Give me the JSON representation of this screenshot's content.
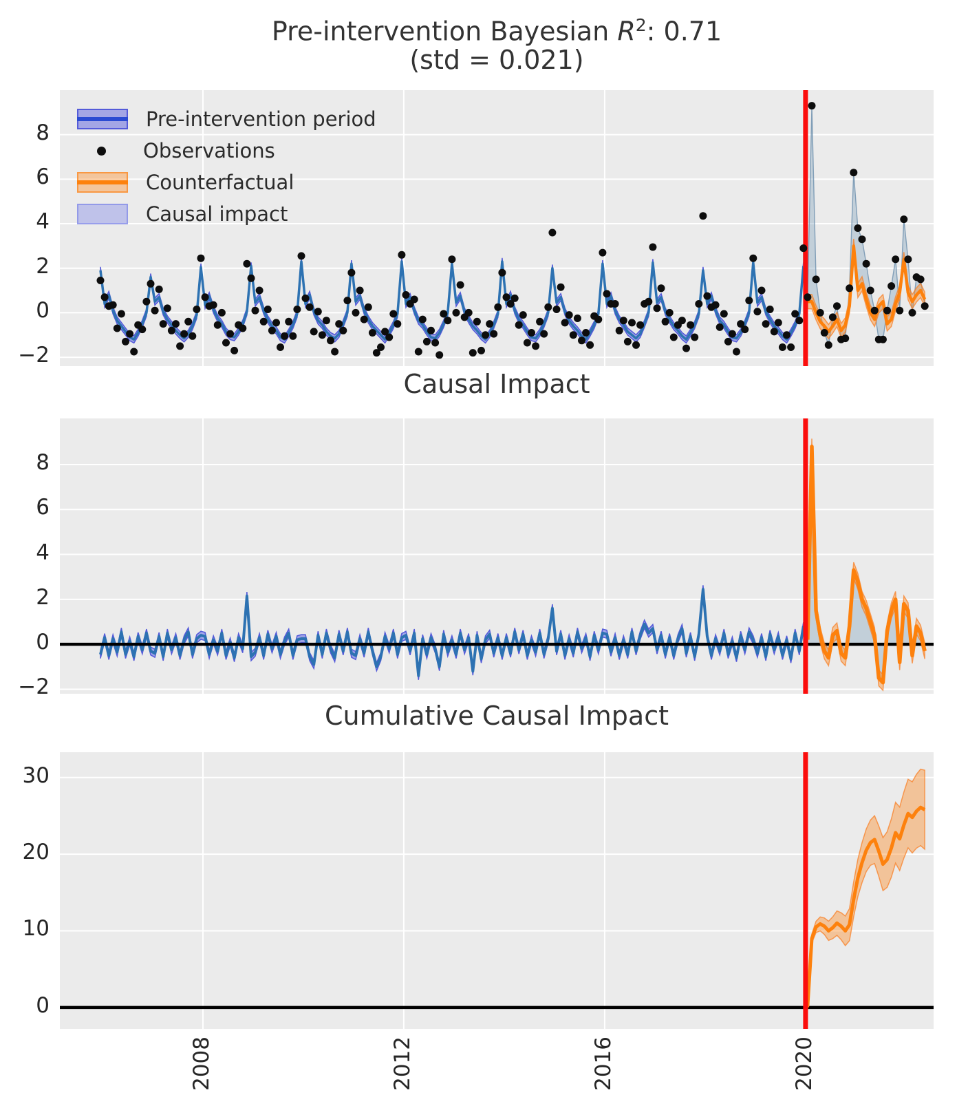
{
  "titles": {
    "main_prefix": "Pre-intervention Bayesian ",
    "main_r": "R",
    "main_sup": "2",
    "main_suffix": ": 0.71",
    "subtitle": "(std = 0.021)",
    "panel2": "Causal Impact",
    "panel3": "Cumulative Causal Impact"
  },
  "legend": {
    "items": [
      {
        "label": "Pre-intervention period",
        "swatch": "blue-band-line"
      },
      {
        "label": "Observations",
        "swatch": "black-dot"
      },
      {
        "label": "Counterfactual",
        "swatch": "orange-band-line"
      },
      {
        "label": "Causal impact",
        "swatch": "lightblue-band"
      }
    ]
  },
  "colors": {
    "pre_line": "#2d72b2",
    "pre_band": "rgba(92,98,224,0.55)",
    "pre_band_edge": "rgba(70,78,215,0.9)",
    "counterfactual_line": "#fd810d",
    "counterfactual_band": "rgba(253,140,40,0.42)",
    "counterfactual_band_edge": "rgba(250,122,28,0.7)",
    "impact_fill": "rgba(114,152,183,0.34)",
    "impact_edge": "rgba(108,142,172,0.8)",
    "observation_dot": "#0d0d0d",
    "intervention_line": "#fb0d0c",
    "zero_line": "#000000",
    "panel_bg": "#ebebeb",
    "grid": "#ffffff",
    "legend_line_blue": "#2a4bd2"
  },
  "chart_data": {
    "type": "line",
    "x_range": [
      2005.15,
      2022.55
    ],
    "x_tick_values": [
      2008,
      2012,
      2016,
      2020
    ],
    "x_tick_labels": [
      "2008",
      "2012",
      "2016",
      "2020"
    ],
    "intervention_x": 2020.0,
    "panels": [
      {
        "name": "fit",
        "y_tick_values": [
          -2,
          0,
          2,
          4,
          6,
          8
        ],
        "y_tick_labels": [
          "−2",
          "0",
          "2",
          "4",
          "6",
          "8"
        ],
        "y_range": [
          -2.4,
          10.0
        ]
      },
      {
        "name": "pointwise",
        "y_tick_values": [
          -2,
          0,
          2,
          4,
          6,
          8
        ],
        "y_tick_labels": [
          "−2",
          "0",
          "2",
          "4",
          "6",
          "8"
        ],
        "y_range": [
          -2.2,
          10.05
        ]
      },
      {
        "name": "cumulative",
        "y_tick_values": [
          0,
          10,
          20,
          30
        ],
        "y_tick_labels": [
          "0",
          "10",
          "20",
          "30"
        ],
        "y_range": [
          -2.8,
          33.3
        ]
      }
    ],
    "series": {
      "start_year": 2005,
      "start_month": 12,
      "frequency": "monthly",
      "intervention_index": 169,
      "model_by_year": [
        [
          1.9
        ],
        [
          0.4,
          0.8,
          0.1,
          -0.35,
          -0.6,
          -0.85,
          -1.1,
          -1.2,
          -0.9,
          -0.5,
          0.0,
          1.6
        ],
        [
          0.5,
          0.7,
          0.05,
          -0.3,
          -0.55,
          -0.8,
          -1.0,
          -1.15,
          -0.95,
          -0.6,
          -0.1,
          2.05
        ],
        [
          0.35,
          0.75,
          0.15,
          -0.25,
          -0.5,
          -0.85,
          -1.05,
          -1.1,
          -0.85,
          -0.5,
          0.05,
          2.1
        ],
        [
          0.45,
          0.7,
          0.1,
          -0.3,
          -0.6,
          -0.8,
          -1.1,
          -1.2,
          -0.9,
          -0.55,
          -0.05,
          2.3
        ],
        [
          0.4,
          0.8,
          0.05,
          -0.35,
          -0.55,
          -0.85,
          -1.05,
          -1.15,
          -0.95,
          -0.5,
          0.0,
          2.2
        ],
        [
          0.5,
          0.75,
          0.1,
          -0.3,
          -0.6,
          -0.8,
          -1.0,
          -1.2,
          -0.9,
          -0.55,
          -0.05,
          2.3
        ],
        [
          0.4,
          0.7,
          0.1,
          -0.35,
          -0.55,
          -0.85,
          -1.1,
          -1.15,
          -0.9,
          -0.5,
          0.0,
          2.2
        ],
        [
          0.45,
          0.75,
          0.05,
          -0.3,
          -0.6,
          -0.8,
          -1.05,
          -1.2,
          -0.95,
          -0.55,
          -0.05,
          2.3
        ],
        [
          0.4,
          0.8,
          0.1,
          -0.3,
          -0.55,
          -0.85,
          -1.1,
          -1.15,
          -0.9,
          -0.5,
          0.0,
          2.0
        ],
        [
          0.45,
          0.7,
          0.05,
          -0.35,
          -0.6,
          -0.8,
          -1.05,
          -1.2,
          -0.9,
          -0.55,
          -0.05,
          2.2
        ],
        [
          0.4,
          0.75,
          0.1,
          -0.3,
          -0.55,
          -0.85,
          -1.0,
          -1.15,
          -0.95,
          -0.5,
          0.0,
          2.25
        ],
        [
          0.45,
          0.7,
          0.05,
          -0.3,
          -0.6,
          -0.8,
          -1.05,
          -1.2,
          -0.9,
          -0.55,
          -0.05,
          1.9
        ],
        [
          0.4,
          0.75,
          0.1,
          -0.35,
          -0.55,
          -0.85,
          -1.1,
          -1.15,
          -0.9,
          -0.5,
          0.0,
          2.25
        ],
        [
          0.45,
          0.7,
          0.05,
          -0.3,
          -0.6,
          -0.8,
          -1.05,
          -1.2,
          -0.9,
          -0.55,
          -0.05,
          2.1
        ],
        [
          0.5,
          0.5,
          0.0,
          -0.4,
          -0.6,
          -0.85,
          -0.6,
          -0.3,
          -0.8,
          -0.55,
          0.3,
          3.0
        ],
        [
          1.0,
          1.3,
          0.6,
          0.0,
          -0.3,
          0.3,
          0.5,
          -0.5,
          -0.3,
          0.4,
          0.9,
          2.4
        ],
        [
          0.9,
          0.5,
          0.8,
          1.0,
          0.6
        ]
      ],
      "residual_by_year": [
        [
          -0.45
        ],
        [
          0.3,
          -0.5,
          0.25,
          -0.35,
          0.55,
          -0.45,
          0.15,
          -0.55,
          0.35,
          -0.25,
          0.5,
          -0.3
        ],
        [
          -0.4,
          0.35,
          -0.55,
          0.5,
          -0.25,
          0.3,
          -0.5,
          0.2,
          0.55,
          -0.45,
          0.25,
          0.4
        ],
        [
          0.35,
          -0.45,
          0.2,
          -0.3,
          0.5,
          -0.5,
          0.1,
          -0.6,
          0.3,
          -0.2,
          2.15,
          -0.55
        ],
        [
          -0.35,
          0.3,
          -0.5,
          0.45,
          -0.2,
          0.35,
          -0.45,
          0.15,
          0.5,
          -0.5,
          0.2,
          0.25
        ],
        [
          0.25,
          -0.55,
          -0.9,
          0.4,
          -0.45,
          0.5,
          -0.2,
          -0.6,
          0.45,
          -0.3,
          0.55,
          -0.4
        ],
        [
          -0.5,
          0.25,
          -0.4,
          0.55,
          -0.3,
          -1.0,
          -0.55,
          0.35,
          -0.2,
          0.5,
          -0.45,
          0.3
        ],
        [
          0.4,
          -0.3,
          0.5,
          -1.4,
          0.25,
          -0.45,
          0.3,
          -0.2,
          -1.0,
          0.45,
          -0.35,
          0.2
        ],
        [
          -0.45,
          0.5,
          -0.25,
          0.3,
          -1.2,
          0.4,
          -0.65,
          0.2,
          0.45,
          -0.4,
          0.3,
          -0.5
        ],
        [
          0.3,
          -0.4,
          0.55,
          -0.25,
          0.45,
          -0.5,
          0.2,
          -0.35,
          0.5,
          -0.45,
          0.25,
          1.6
        ],
        [
          -0.3,
          0.45,
          -0.5,
          0.25,
          -0.4,
          0.55,
          -0.2,
          0.3,
          -0.55,
          0.4,
          -0.25,
          0.5
        ],
        [
          0.45,
          -0.35,
          0.3,
          -0.5,
          0.2,
          -0.45,
          0.55,
          -0.3,
          0.4,
          0.9,
          0.5,
          0.7
        ],
        [
          -0.25,
          0.4,
          -0.45,
          0.3,
          -0.5,
          0.25,
          0.7,
          -0.4,
          0.35,
          -0.55,
          0.45,
          2.45
        ],
        [
          0.35,
          -0.5,
          0.25,
          -0.3,
          0.5,
          -0.45,
          0.15,
          -0.6,
          0.4,
          -0.25,
          0.55,
          0.2
        ],
        [
          -0.4,
          0.3,
          -0.55,
          0.45,
          -0.25,
          0.35,
          -0.5,
          0.2,
          -0.65,
          0.5,
          -0.3,
          0.8
        ],
        [
          0.2,
          8.8,
          1.5,
          0.4,
          -0.3,
          -0.6,
          0.4,
          0.6,
          -0.4,
          -0.6,
          0.8,
          3.3
        ],
        [
          2.8,
          2.0,
          1.6,
          1.0,
          0.4,
          -1.5,
          -1.7,
          0.6,
          1.5,
          2.0,
          -0.8,
          1.8
        ],
        [
          1.5,
          -0.5,
          0.8,
          0.5,
          -0.3
        ]
      ],
      "band_halfwidth": {
        "fit_pre": 0.16,
        "fit_post": 0.32,
        "pointwise_pre": 0.18,
        "pointwise_post": 0.35,
        "cumulative_start": 0.4,
        "cumulative_growth": 0.17
      }
    }
  }
}
